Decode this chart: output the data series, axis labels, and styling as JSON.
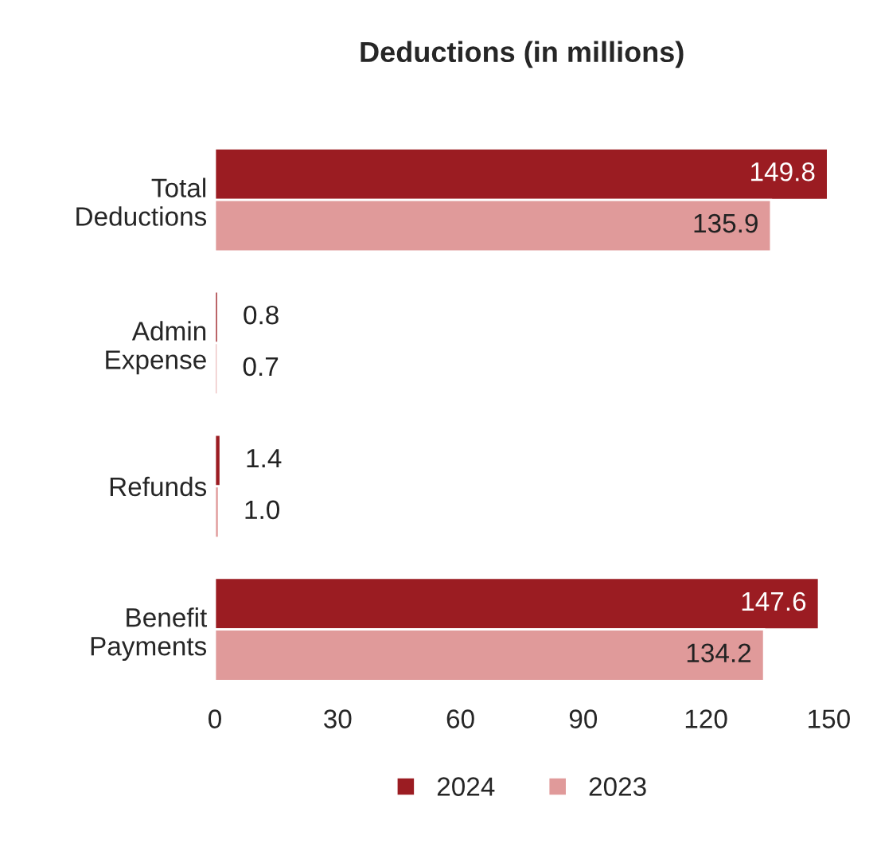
{
  "chart_data": {
    "type": "bar",
    "orientation": "horizontal",
    "title": "Deductions (in millions)",
    "categories": [
      "Total\nDeductions",
      "Admin\nExpense",
      "Refunds",
      "Benefit\nPayments"
    ],
    "series": [
      {
        "name": "2024",
        "color": "#9b1c22",
        "values": [
          149.8,
          0.8,
          1.4,
          147.6
        ],
        "value_labels": [
          "149.8",
          "0.8",
          "1.4",
          "147.6"
        ]
      },
      {
        "name": "2023",
        "color": "#e09a9a",
        "values": [
          135.9,
          0.7,
          1.0,
          134.2
        ],
        "value_labels": [
          "135.9",
          "0.7",
          "1.0",
          "134.2"
        ]
      }
    ],
    "xlim": [
      0,
      150
    ],
    "xticks": [
      0,
      30,
      60,
      90,
      120,
      150
    ],
    "grid": false,
    "legend": "bottom"
  }
}
